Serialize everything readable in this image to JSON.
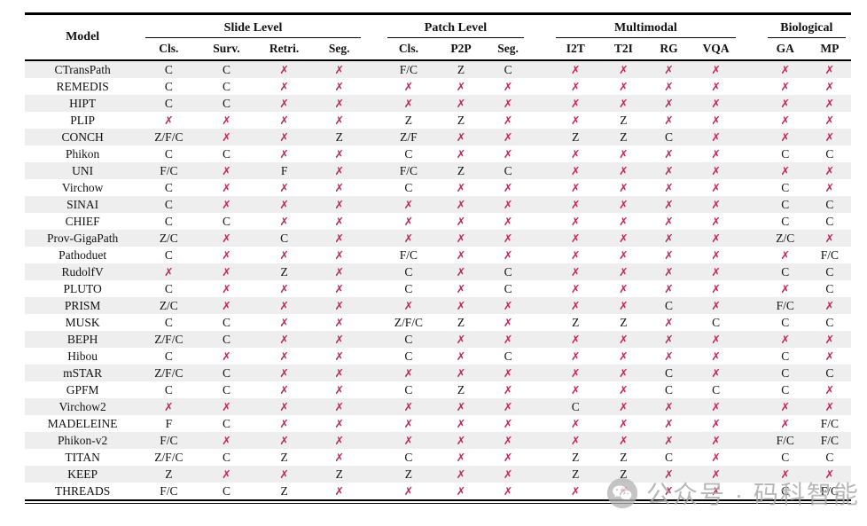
{
  "table": {
    "model_header": "Model",
    "groups": [
      {
        "label": "Slide Level",
        "columns": [
          "Cls.",
          "Surv.",
          "Retri.",
          "Seg."
        ]
      },
      {
        "label": "Patch Level",
        "columns": [
          "Cls.",
          "P2P",
          "Seg."
        ]
      },
      {
        "label": "Multimodal",
        "columns": [
          "I2T",
          "T2I",
          "RG",
          "VQA"
        ]
      },
      {
        "label": "Biological",
        "columns": [
          "GA",
          "MP"
        ]
      }
    ],
    "legend": {
      "cross_symbol": "✗"
    },
    "rows": [
      {
        "model": "CTransPath",
        "values": [
          "C",
          "C",
          "✗",
          "✗",
          "F/C",
          "Z",
          "C",
          "✗",
          "✗",
          "✗",
          "✗",
          "✗",
          "✗"
        ]
      },
      {
        "model": "REMEDIS",
        "values": [
          "C",
          "C",
          "✗",
          "✗",
          "✗",
          "✗",
          "✗",
          "✗",
          "✗",
          "✗",
          "✗",
          "✗",
          "✗"
        ]
      },
      {
        "model": "HIPT",
        "values": [
          "C",
          "C",
          "✗",
          "✗",
          "✗",
          "✗",
          "✗",
          "✗",
          "✗",
          "✗",
          "✗",
          "✗",
          "✗"
        ]
      },
      {
        "model": "PLIP",
        "values": [
          "✗",
          "✗",
          "✗",
          "✗",
          "Z",
          "Z",
          "✗",
          "✗",
          "Z",
          "✗",
          "✗",
          "✗",
          "✗"
        ]
      },
      {
        "model": "CONCH",
        "values": [
          "Z/F/C",
          "✗",
          "✗",
          "Z",
          "Z/F",
          "✗",
          "✗",
          "Z",
          "Z",
          "C",
          "✗",
          "✗",
          "✗"
        ]
      },
      {
        "model": "Phikon",
        "values": [
          "C",
          "C",
          "✗",
          "✗",
          "C",
          "✗",
          "✗",
          "✗",
          "✗",
          "✗",
          "✗",
          "C",
          "C"
        ]
      },
      {
        "model": "UNI",
        "values": [
          "F/C",
          "✗",
          "F",
          "✗",
          "F/C",
          "Z",
          "C",
          "✗",
          "✗",
          "✗",
          "✗",
          "✗",
          "✗"
        ]
      },
      {
        "model": "Virchow",
        "values": [
          "C",
          "✗",
          "✗",
          "✗",
          "C",
          "✗",
          "✗",
          "✗",
          "✗",
          "✗",
          "✗",
          "C",
          "✗"
        ]
      },
      {
        "model": "SINAI",
        "values": [
          "C",
          "✗",
          "✗",
          "✗",
          "✗",
          "✗",
          "✗",
          "✗",
          "✗",
          "✗",
          "✗",
          "C",
          "C"
        ]
      },
      {
        "model": "CHIEF",
        "values": [
          "C",
          "C",
          "✗",
          "✗",
          "✗",
          "✗",
          "✗",
          "✗",
          "✗",
          "✗",
          "✗",
          "C",
          "C"
        ]
      },
      {
        "model": "Prov-GigaPath",
        "values": [
          "Z/C",
          "✗",
          "C",
          "✗",
          "✗",
          "✗",
          "✗",
          "✗",
          "✗",
          "✗",
          "✗",
          "Z/C",
          "✗"
        ]
      },
      {
        "model": "Pathoduet",
        "values": [
          "C",
          "✗",
          "✗",
          "✗",
          "F/C",
          "✗",
          "✗",
          "✗",
          "✗",
          "✗",
          "✗",
          "✗",
          "F/C"
        ]
      },
      {
        "model": "RudolfV",
        "values": [
          "✗",
          "✗",
          "Z",
          "✗",
          "C",
          "✗",
          "C",
          "✗",
          "✗",
          "✗",
          "✗",
          "C",
          "C"
        ]
      },
      {
        "model": "PLUTO",
        "values": [
          "C",
          "✗",
          "✗",
          "✗",
          "C",
          "✗",
          "C",
          "✗",
          "✗",
          "✗",
          "✗",
          "✗",
          "C"
        ]
      },
      {
        "model": "PRISM",
        "values": [
          "Z/C",
          "✗",
          "✗",
          "✗",
          "✗",
          "✗",
          "✗",
          "✗",
          "✗",
          "C",
          "✗",
          "F/C",
          "✗"
        ]
      },
      {
        "model": "MUSK",
        "values": [
          "C",
          "C",
          "✗",
          "✗",
          "Z/F/C",
          "Z",
          "✗",
          "Z",
          "Z",
          "✗",
          "C",
          "C",
          "C"
        ]
      },
      {
        "model": "BEPH",
        "values": [
          "Z/F/C",
          "C",
          "✗",
          "✗",
          "C",
          "✗",
          "✗",
          "✗",
          "✗",
          "✗",
          "✗",
          "✗",
          "✗"
        ]
      },
      {
        "model": "Hibou",
        "values": [
          "C",
          "✗",
          "✗",
          "✗",
          "C",
          "✗",
          "C",
          "✗",
          "✗",
          "✗",
          "✗",
          "C",
          "✗"
        ]
      },
      {
        "model": "mSTAR",
        "values": [
          "Z/F/C",
          "C",
          "✗",
          "✗",
          "✗",
          "✗",
          "✗",
          "✗",
          "✗",
          "C",
          "✗",
          "C",
          "C"
        ]
      },
      {
        "model": "GPFM",
        "values": [
          "C",
          "C",
          "✗",
          "✗",
          "C",
          "Z",
          "✗",
          "✗",
          "✗",
          "C",
          "C",
          "C",
          "✗"
        ]
      },
      {
        "model": "Virchow2",
        "values": [
          "✗",
          "✗",
          "✗",
          "✗",
          "✗",
          "✗",
          "✗",
          "C",
          "✗",
          "✗",
          "✗",
          "✗",
          "✗"
        ]
      },
      {
        "model": "MADELEINE",
        "values": [
          "F",
          "C",
          "✗",
          "✗",
          "✗",
          "✗",
          "✗",
          "✗",
          "✗",
          "✗",
          "✗",
          "✗",
          "F/C"
        ]
      },
      {
        "model": "Phikon-v2",
        "values": [
          "F/C",
          "✗",
          "✗",
          "✗",
          "✗",
          "✗",
          "✗",
          "✗",
          "✗",
          "✗",
          "✗",
          "F/C",
          "F/C"
        ]
      },
      {
        "model": "TITAN",
        "values": [
          "Z/F/C",
          "C",
          "Z",
          "✗",
          "C",
          "✗",
          "✗",
          "Z",
          "Z",
          "C",
          "✗",
          "C",
          "C"
        ]
      },
      {
        "model": "KEEP",
        "values": [
          "Z",
          "✗",
          "✗",
          "Z",
          "Z",
          "✗",
          "✗",
          "Z",
          "Z",
          "✗",
          "✗",
          "✗",
          "✗"
        ]
      },
      {
        "model": "THREADS",
        "values": [
          "F/C",
          "C",
          "Z",
          "✗",
          "✗",
          "✗",
          "✗",
          "✗",
          "✗",
          "✗",
          "✗",
          "C",
          "F/C"
        ]
      }
    ]
  },
  "watermark": {
    "icon": "wechat-icon",
    "text": "公众号 · 码科智能"
  },
  "colors": {
    "cross": "#C2255C",
    "stripe": "#EEEEEE",
    "text": "#111111",
    "rule": "#000000",
    "watermark": "#A8A8A8"
  }
}
